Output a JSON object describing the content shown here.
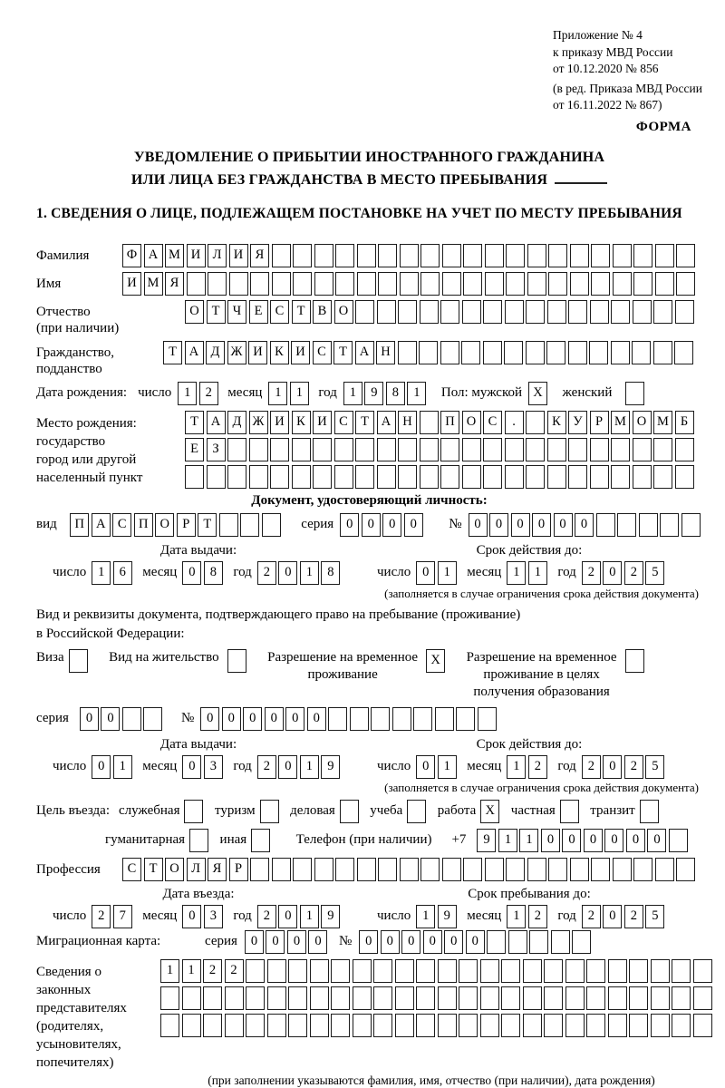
{
  "meta": {
    "appendix_lines": [
      "Приложение № 4",
      "к приказу МВД России",
      "от 10.12.2020 № 856"
    ],
    "revision_lines": [
      "(в ред. Приказа МВД России",
      "от 16.11.2022 № 867)"
    ],
    "forma": "ФОРМА"
  },
  "title": {
    "line1": "УВЕДОМЛЕНИЕ О ПРИБЫТИИ ИНОСТРАННОГО ГРАЖДАНИНА",
    "line2": "ИЛИ ЛИЦА БЕЗ ГРАЖДАНСТВА В МЕСТО ПРЕБЫВАНИЯ"
  },
  "section1_heading": "1. СВЕДЕНИЯ О ЛИЦЕ, ПОДЛЕЖАЩЕМ ПОСТАНОВКЕ НА УЧЕТ ПО МЕСТУ ПРЕБЫВАНИЯ",
  "surname": {
    "label": "Фамилия",
    "box": {
      "cells": 27,
      "value": "ФАМИЛИЯ"
    }
  },
  "firstname": {
    "label": "Имя",
    "box": {
      "cells": 27,
      "value": "ИМЯ"
    }
  },
  "patronymic": {
    "label1": "Отчество",
    "label2": "(при наличии)",
    "box": {
      "cells": 24,
      "value": "ОТЧЕСТВО"
    }
  },
  "citizenship": {
    "label1": "Гражданство,",
    "label2": "подданство",
    "box": {
      "cells": 25,
      "value": "ТАДЖИКИСТАН"
    }
  },
  "birth_date": {
    "label": "Дата рождения:",
    "day_label": "число",
    "day": {
      "cells": 2,
      "value": "12"
    },
    "month_label": "месяц",
    "month": {
      "cells": 2,
      "value": "11"
    },
    "year_label": "год",
    "year": {
      "cells": 4,
      "value": "1981"
    }
  },
  "gender": {
    "label": "Пол: мужской",
    "male_box": {
      "cells": 1,
      "value": "X"
    },
    "female_label": "женский",
    "female_box": {
      "cells": 1,
      "value": ""
    }
  },
  "birth_place": {
    "label_lines": [
      "Место рождения:",
      "государство",
      "город или другой",
      "населенный пункт"
    ],
    "row1": {
      "cells": 24,
      "value": "ТАДЖИКИСТАН ПОС. КУРМОМБ"
    },
    "row2": {
      "cells": 24,
      "value": "ЕЗ"
    },
    "row3": {
      "cells": 24,
      "value": ""
    }
  },
  "identity_doc": {
    "heading": "Документ, удостоверяющий личность:",
    "type_label": "вид",
    "type_box": {
      "cells": 10,
      "value": "ПАСПОРТ"
    },
    "series_label": "серия",
    "series_box": {
      "cells": 4,
      "value": "0000"
    },
    "number_label": "№",
    "number_box": {
      "cells": 11,
      "value": "000000"
    },
    "issue": {
      "title": "Дата выдачи:",
      "day_label": "число",
      "day": {
        "cells": 2,
        "value": "16"
      },
      "month_label": "месяц",
      "month": {
        "cells": 2,
        "value": "08"
      },
      "year_label": "год",
      "year": {
        "cells": 4,
        "value": "2018"
      }
    },
    "valid": {
      "title": "Срок действия до:",
      "day_label": "число",
      "day": {
        "cells": 2,
        "value": "01"
      },
      "month_label": "месяц",
      "month": {
        "cells": 2,
        "value": "11"
      },
      "year_label": "год",
      "year": {
        "cells": 4,
        "value": "2025"
      }
    },
    "valid_note": "(заполняется в случае ограничения срока действия документа)"
  },
  "residence_doc": {
    "line1": "Вид и реквизиты документа, подтверждающего право на пребывание (проживание)",
    "line2": "в Российской Федерации:",
    "visa": {
      "label": "Виза",
      "box": {
        "cells": 1,
        "value": ""
      }
    },
    "residence_permit": {
      "label": "Вид на жительство",
      "box": {
        "cells": 1,
        "value": ""
      }
    },
    "temp_permit": {
      "label1": "Разрешение на временное",
      "label2": "проживание",
      "box": {
        "cells": 1,
        "value": "X"
      }
    },
    "edu_permit": {
      "label1": "Разрешение на временное",
      "label2": "проживание в целях",
      "label3": "получения образования",
      "box": {
        "cells": 1,
        "value": ""
      }
    },
    "series_label": "серия",
    "series_box": {
      "cells": 4,
      "value": "00"
    },
    "number_label": "№",
    "number_box": {
      "cells": 14,
      "value": "000000"
    },
    "issue": {
      "title": "Дата выдачи:",
      "day_label": "число",
      "day": {
        "cells": 2,
        "value": "01"
      },
      "month_label": "месяц",
      "month": {
        "cells": 2,
        "value": "03"
      },
      "year_label": "год",
      "year": {
        "cells": 4,
        "value": "2019"
      }
    },
    "valid": {
      "title": "Срок действия до:",
      "day_label": "число",
      "day": {
        "cells": 2,
        "value": "01"
      },
      "month_label": "месяц",
      "month": {
        "cells": 2,
        "value": "12"
      },
      "year_label": "год",
      "year": {
        "cells": 4,
        "value": "2025"
      }
    },
    "valid_note": "(заполняется в случае ограничения срока действия документа)"
  },
  "purpose": {
    "label": "Цель въезда:",
    "opt1": {
      "label": "служебная",
      "box": {
        "cells": 1,
        "value": ""
      }
    },
    "opt2": {
      "label": "туризм",
      "box": {
        "cells": 1,
        "value": ""
      }
    },
    "opt3": {
      "label": "деловая",
      "box": {
        "cells": 1,
        "value": ""
      }
    },
    "opt4": {
      "label": "учеба",
      "box": {
        "cells": 1,
        "value": ""
      }
    },
    "opt5": {
      "label": "работа",
      "box": {
        "cells": 1,
        "value": "X"
      }
    },
    "opt6": {
      "label": "частная",
      "box": {
        "cells": 1,
        "value": ""
      }
    },
    "opt7": {
      "label": "транзит",
      "box": {
        "cells": 1,
        "value": ""
      }
    },
    "opt8": {
      "label": "гуманитарная",
      "box": {
        "cells": 1,
        "value": ""
      }
    },
    "opt9": {
      "label": "иная",
      "box": {
        "cells": 1,
        "value": ""
      }
    },
    "phone_label": "Телефон (при наличии)",
    "phone_prefix": "+7",
    "phone_box": {
      "cells": 10,
      "value": "911000000"
    }
  },
  "profession": {
    "label": "Профессия",
    "box": {
      "cells": 27,
      "value": "СТОЛЯР"
    }
  },
  "entry": {
    "issue": {
      "title": "Дата въезда:",
      "day_label": "число",
      "day": {
        "cells": 2,
        "value": "27"
      },
      "month_label": "месяц",
      "month": {
        "cells": 2,
        "value": "03"
      },
      "year_label": "год",
      "year": {
        "cells": 4,
        "value": "2019"
      }
    },
    "valid": {
      "title": "Срок пребывания до:",
      "day_label": "число",
      "day": {
        "cells": 2,
        "value": "19"
      },
      "month_label": "месяц",
      "month": {
        "cells": 2,
        "value": "12"
      },
      "year_label": "год",
      "year": {
        "cells": 4,
        "value": "2025"
      }
    }
  },
  "migration_card": {
    "label": "Миграционная карта:",
    "series_label": "серия",
    "series_box": {
      "cells": 4,
      "value": "0000"
    },
    "number_label": "№",
    "number_box": {
      "cells": 11,
      "value": "000000"
    }
  },
  "representatives": {
    "label_lines": [
      "Сведения о",
      "законных",
      "представителях",
      "(родителях,",
      "усыновителях,",
      "попечителях)"
    ],
    "row1": {
      "cells": 26,
      "value": "1122"
    },
    "row2": {
      "cells": 26,
      "value": ""
    },
    "row3": {
      "cells": 26,
      "value": ""
    },
    "note": "(при заполнении указываются фамилия, имя, отчество (при наличии), дата рождения)"
  }
}
